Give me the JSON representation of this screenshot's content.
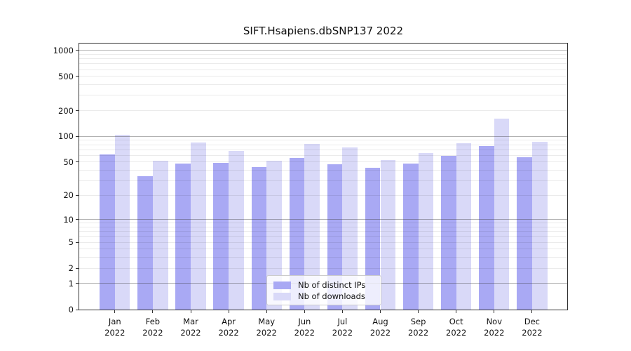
{
  "title": "SIFT.Hsapiens.dbSNP137 2022",
  "legend": {
    "entries": [
      {
        "label": "Nb of distinct IPs",
        "color": "#a9a9f4"
      },
      {
        "label": "Nb of downloads",
        "color": "#d9d9f8"
      }
    ]
  },
  "axes": {
    "y_ticks": [
      0,
      1,
      2,
      5,
      10,
      20,
      50,
      100,
      200,
      500,
      1000
    ],
    "y_minor_ticks": [
      2,
      3,
      4,
      5,
      6,
      7,
      8,
      9,
      20,
      30,
      40,
      50,
      60,
      70,
      80,
      90,
      200,
      300,
      400,
      500,
      600,
      700,
      800,
      900
    ],
    "y_major_gridlines": [
      1,
      10,
      100,
      1000
    ]
  },
  "colors": {
    "distinct_ips": "#a9a9f4",
    "downloads": "#d9d9f8",
    "major_grid": "#b2b2b2",
    "minor_grid": "#ebebeb",
    "spine": "#333333",
    "text": "#111111",
    "background": "#ffffff"
  },
  "chart_data": {
    "type": "bar",
    "title": "SIFT.Hsapiens.dbSNP137 2022",
    "categories": [
      "Jan 2022",
      "Feb 2022",
      "Mar 2022",
      "Apr 2022",
      "May 2022",
      "Jun 2022",
      "Jul 2022",
      "Aug 2022",
      "Sep 2022",
      "Oct 2022",
      "Nov 2022",
      "Dec 2022"
    ],
    "series": [
      {
        "name": "Nb of distinct IPs",
        "color": "#a9a9f4",
        "values": [
          61,
          34,
          48,
          49,
          44,
          56,
          47,
          43,
          48,
          59,
          77,
          57
        ]
      },
      {
        "name": "Nb of downloads",
        "color": "#d9d9f8",
        "values": [
          105,
          52,
          85,
          68,
          52,
          81,
          74,
          53,
          64,
          84,
          162,
          86
        ]
      }
    ],
    "yscale": "log1p",
    "ylim": [
      0,
      1200
    ],
    "ylabel": "",
    "xlabel": "",
    "grid": true,
    "grid_above_bars": true,
    "legend_position": "lower center"
  }
}
